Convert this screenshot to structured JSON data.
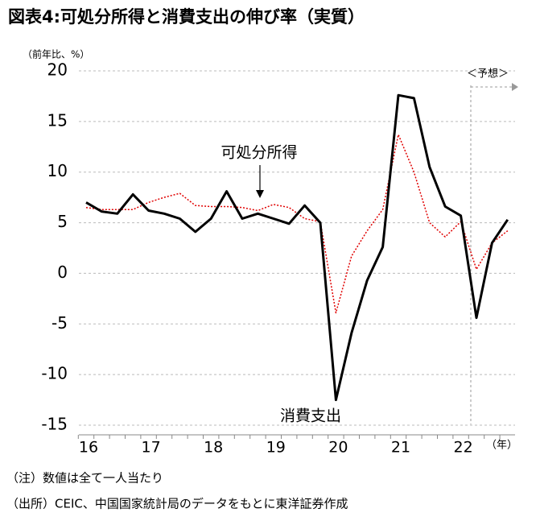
{
  "chart_data": {
    "type": "line",
    "title": "図表4:可処分所得と消費支出の伸び率（実質）",
    "y_unit": "（前年比、%）",
    "x_unit": "（年）",
    "categories": [
      "16",
      null,
      null,
      null,
      "17",
      null,
      null,
      null,
      "18",
      null,
      null,
      null,
      "19",
      null,
      null,
      null,
      "20",
      null,
      null,
      null,
      "21",
      null,
      null,
      null,
      "22",
      null,
      null,
      null
    ],
    "series": [
      {
        "name": "消費支出",
        "color": "#000000",
        "style": "solid",
        "values": [
          7.0,
          6.1,
          5.9,
          7.8,
          6.2,
          5.9,
          5.4,
          4.1,
          5.4,
          8.1,
          5.4,
          5.9,
          5.4,
          4.9,
          6.7,
          5.0,
          -12.5,
          -5.9,
          -0.7,
          2.6,
          17.6,
          17.3,
          10.5,
          6.6,
          5.7,
          -4.4,
          3.0,
          5.3
        ]
      },
      {
        "name": "可処分所得",
        "color": "#e00000",
        "style": "dotted",
        "values": [
          6.5,
          6.3,
          6.3,
          6.3,
          7.0,
          7.5,
          7.9,
          6.7,
          6.6,
          6.6,
          6.5,
          6.2,
          6.8,
          6.5,
          5.4,
          5.1,
          -3.9,
          1.7,
          4.2,
          6.3,
          13.7,
          10.0,
          5.0,
          3.6,
          5.1,
          0.4,
          3.0,
          4.2
        ]
      }
    ],
    "ylim": [
      -15,
      20
    ],
    "yticks": [
      -15,
      -10,
      -5,
      0,
      5,
      10,
      15,
      20
    ],
    "grid": true,
    "forecast_label": "＜予想＞",
    "notes": [
      "（注）数値は全て一人当たり",
      "（出所）CEIC、中国国家統計局のデータをもとに東洋証券作成"
    ]
  }
}
